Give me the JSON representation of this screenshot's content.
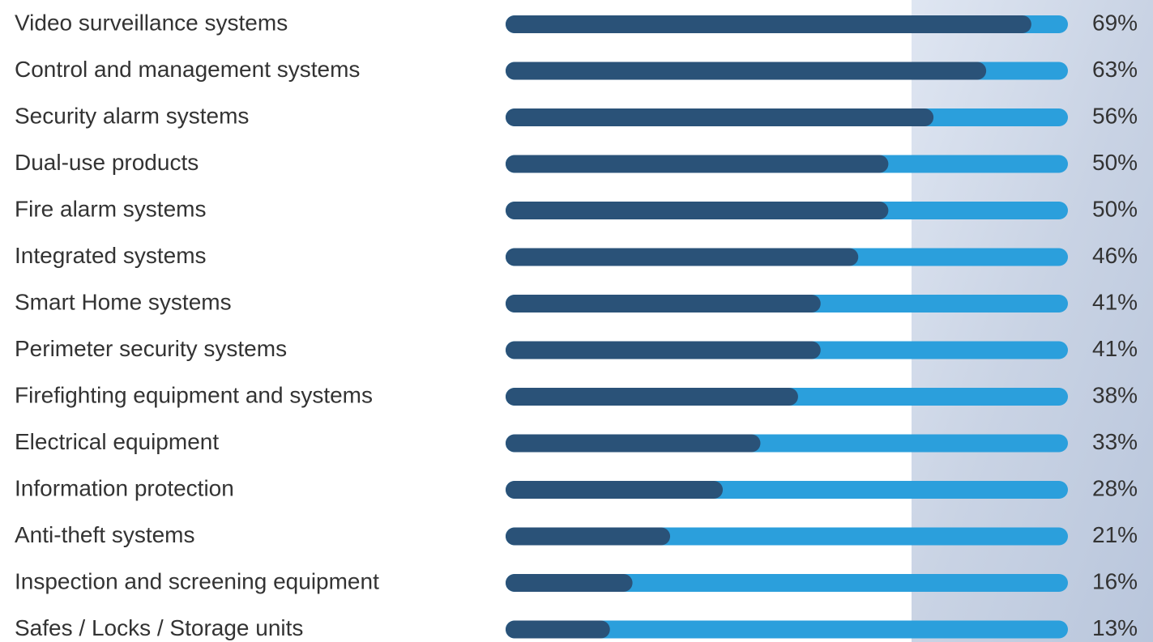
{
  "chart_data": {
    "type": "bar",
    "orientation": "horizontal",
    "categories": [
      "Video surveillance systems",
      "Control and management systems",
      "Security alarm systems",
      "Dual-use products",
      "Fire alarm systems",
      "Integrated systems",
      "Smart Home systems",
      "Perimeter security systems",
      "Firefighting equipment and systems",
      "Electrical equipment",
      "Information protection",
      "Anti-theft systems",
      "Inspection and screening equipment",
      "Safes / Locks / Storage units"
    ],
    "values": [
      69,
      63,
      56,
      50,
      50,
      46,
      41,
      41,
      38,
      33,
      28,
      21,
      16,
      13
    ],
    "value_labels": [
      "69%",
      "63%",
      "56%",
      "50%",
      "50%",
      "46%",
      "41%",
      "41%",
      "38%",
      "33%",
      "28%",
      "21%",
      "16%",
      "13%"
    ],
    "xlim": [
      0,
      73
    ],
    "color": "#2a5278",
    "track_color": "#2b9fdc"
  }
}
